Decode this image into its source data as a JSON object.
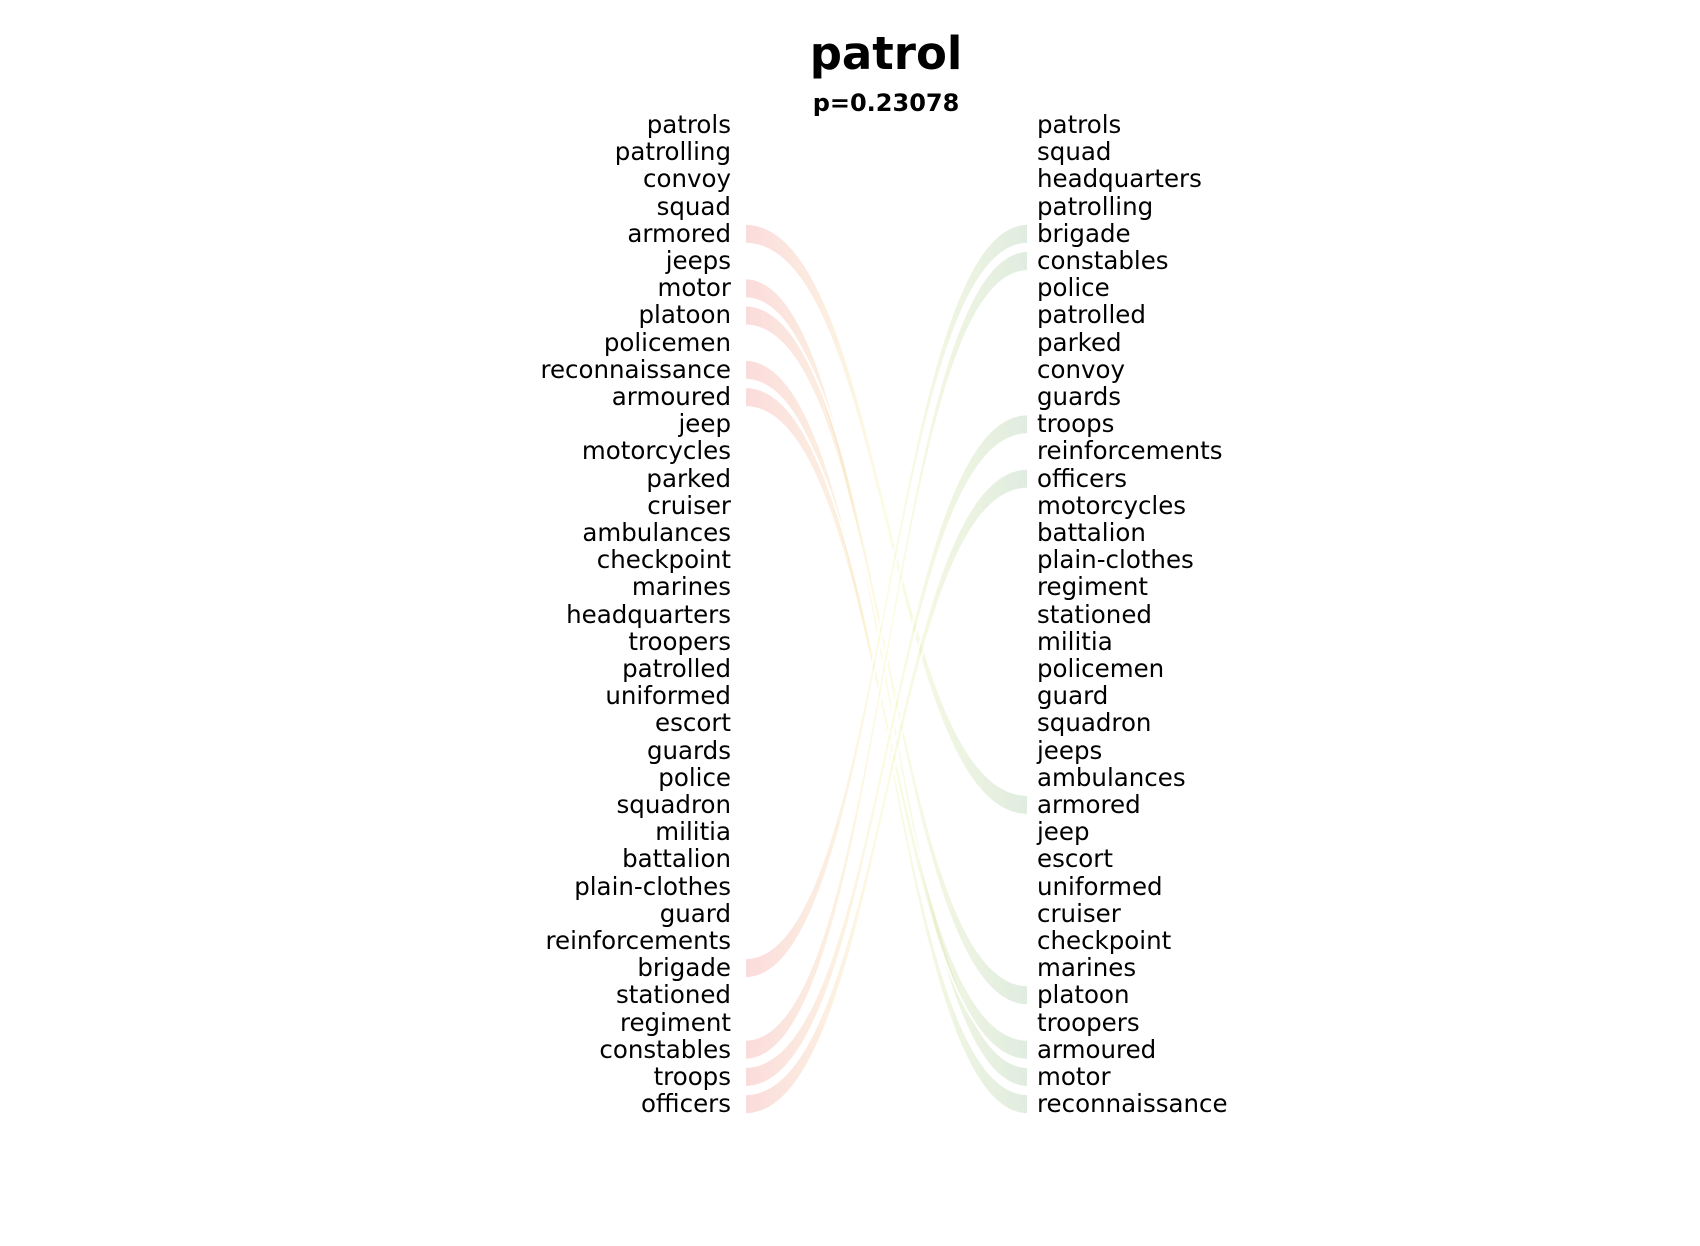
{
  "title": "patrol",
  "subtitle": "p=0.23078",
  "colors": {
    "left_ribbon": "#f08080",
    "right_ribbon": "#8fbc8f",
    "mid_ribbon": "#f5f5a0",
    "text": "#000000"
  },
  "left_words": [
    "patrols",
    "patrolling",
    "convoy",
    "squad",
    "armored",
    "jeeps",
    "motor",
    "platoon",
    "policemen",
    "reconnaissance",
    "armoured",
    "jeep",
    "motorcycles",
    "parked",
    "cruiser",
    "ambulances",
    "checkpoint",
    "marines",
    "headquarters",
    "troopers",
    "patrolled",
    "uniformed",
    "escort",
    "guards",
    "police",
    "squadron",
    "militia",
    "battalion",
    "plain-clothes",
    "guard",
    "reinforcements",
    "brigade",
    "stationed",
    "regiment",
    "constables",
    "troops",
    "officers"
  ],
  "right_words": [
    "patrols",
    "squad",
    "headquarters",
    "patrolling",
    "brigade",
    "constables",
    "police",
    "patrolled",
    "parked",
    "convoy",
    "guards",
    "troops",
    "reinforcements",
    "officers",
    "motorcycles",
    "battalion",
    "plain-clothes",
    "regiment",
    "stationed",
    "militia",
    "policemen",
    "guard",
    "squadron",
    "jeeps",
    "ambulances",
    "armored",
    "jeep",
    "escort",
    "uniformed",
    "cruiser",
    "checkpoint",
    "marines",
    "platoon",
    "troopers",
    "armoured",
    "motor",
    "reconnaissance"
  ],
  "links": [
    {
      "from": "armored",
      "to": "armored"
    },
    {
      "from": "motor",
      "to": "motor"
    },
    {
      "from": "platoon",
      "to": "platoon"
    },
    {
      "from": "reconnaissance",
      "to": "reconnaissance"
    },
    {
      "from": "armoured",
      "to": "armoured"
    },
    {
      "from": "brigade",
      "to": "brigade"
    },
    {
      "from": "constables",
      "to": "constables"
    },
    {
      "from": "troops",
      "to": "troops"
    },
    {
      "from": "officers",
      "to": "officers"
    }
  ]
}
